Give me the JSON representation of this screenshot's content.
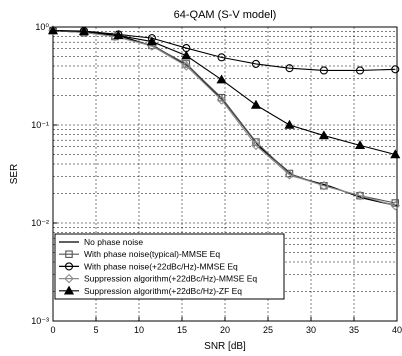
{
  "chart_data": {
    "type": "line",
    "title": "64-QAM (S-V model)",
    "xlabel": "SNR [dB]",
    "ylabel": "SER",
    "xlim": [
      0,
      40
    ],
    "ylim": [
      0.001,
      1
    ],
    "yscale": "log",
    "grid": true,
    "legend_position": "bottom-left",
    "x_ticks": [
      "0",
      "5",
      "10",
      "15",
      "20",
      "25",
      "30",
      "35",
      "40"
    ],
    "y_ticks": [
      "10⁻³",
      "10⁻²",
      "10⁻¹",
      "10⁰"
    ],
    "series": [
      {
        "name": "No phase noise",
        "marker": "none",
        "color": "#000000",
        "x": [
          0,
          4,
          8,
          12,
          16,
          20,
          24,
          28,
          32,
          36,
          40
        ],
        "y": [
          0.92,
          0.88,
          0.8,
          0.62,
          0.38,
          0.17,
          0.06,
          0.03,
          0.024,
          0.018,
          0.015
        ]
      },
      {
        "name": "With phase noise(typical)-MMSE Eq",
        "marker": "square",
        "color": "#555555",
        "x": [
          0,
          3.6,
          7.2,
          11.5,
          15.5,
          19.6,
          23.6,
          27.5,
          31.5,
          35.7,
          39.8
        ],
        "y": [
          0.92,
          0.88,
          0.8,
          0.65,
          0.42,
          0.19,
          0.067,
          0.032,
          0.024,
          0.019,
          0.016
        ]
      },
      {
        "name": "With phase noise(+22dBc/Hz)-MMSE Eq",
        "marker": "circle",
        "color": "#000000",
        "x": [
          0,
          3.6,
          7.6,
          11.5,
          15.5,
          19.6,
          23.6,
          27.5,
          31.5,
          35.7,
          39.8
        ],
        "y": [
          0.92,
          0.91,
          0.84,
          0.77,
          0.61,
          0.49,
          0.42,
          0.38,
          0.36,
          0.36,
          0.37
        ]
      },
      {
        "name": "Suppression algorithm(+22dBc/Hz)-MMSE Eq",
        "marker": "diamond",
        "color": "#8c8c8c",
        "x": [
          0,
          3.6,
          7.2,
          11.5,
          15.5,
          19.6,
          23.6,
          27.5,
          31.5,
          35.7,
          39.8
        ],
        "y": [
          0.92,
          0.88,
          0.8,
          0.64,
          0.4,
          0.18,
          0.062,
          0.031,
          0.024,
          0.019,
          0.015
        ]
      },
      {
        "name": "Suppression algorithm(+22dBc/Hz)-ZF Eq",
        "marker": "triangle",
        "color": "#000000",
        "x": [
          0,
          3.6,
          7.6,
          11.5,
          15.5,
          19.6,
          23.6,
          27.5,
          31.5,
          35.7,
          39.8
        ],
        "y": [
          0.92,
          0.9,
          0.82,
          0.71,
          0.51,
          0.29,
          0.16,
          0.1,
          0.078,
          0.062,
          0.05
        ]
      }
    ]
  }
}
